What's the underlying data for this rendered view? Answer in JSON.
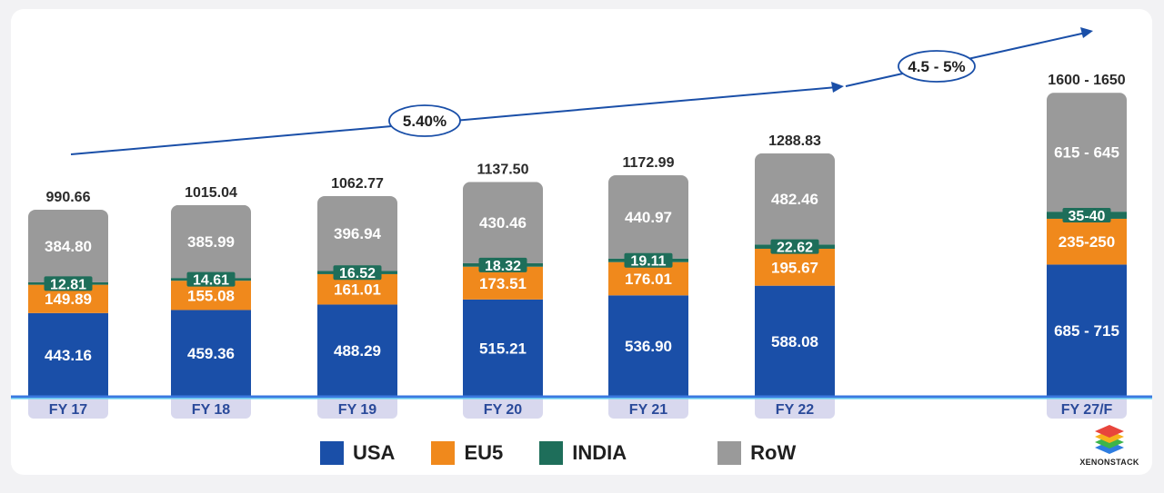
{
  "chart_data": {
    "type": "bar",
    "stacked": true,
    "categories": [
      "FY 17",
      "FY 18",
      "FY 19",
      "FY 20",
      "FY 21",
      "FY 22",
      "FY 27/F"
    ],
    "totals": [
      "990.66",
      "1015.04",
      "1062.77",
      "1137.50",
      "1172.99",
      "1288.83",
      "1600 - 1650"
    ],
    "series": [
      {
        "name": "USA",
        "color": "#1a4fa8",
        "values": [
          443.16,
          459.36,
          488.29,
          515.21,
          536.9,
          588.08,
          700
        ],
        "labels": [
          "443.16",
          "459.36",
          "488.29",
          "515.21",
          "536.90",
          "588.08",
          "685 - 715"
        ]
      },
      {
        "name": "EU5",
        "color": "#f0891c",
        "values": [
          149.89,
          155.08,
          161.01,
          173.51,
          176.01,
          195.67,
          242.5
        ],
        "labels": [
          "149.89",
          "155.08",
          "161.01",
          "173.51",
          "176.01",
          "195.67",
          "235-250"
        ]
      },
      {
        "name": "INDIA",
        "color": "#1e6e5a",
        "values": [
          12.81,
          14.61,
          16.52,
          18.32,
          19.11,
          22.62,
          37.5
        ],
        "labels": [
          "12.81",
          "14.61",
          "16.52",
          "18.32",
          "19.11",
          "22.62",
          "35-40"
        ]
      },
      {
        "name": "RoW",
        "color": "#9a9a9a",
        "values": [
          384.8,
          385.99,
          396.94,
          430.46,
          440.97,
          482.46,
          630
        ],
        "labels": [
          "384.80",
          "385.99",
          "396.94",
          "430.46",
          "440.97",
          "482.46",
          "615 - 645"
        ]
      }
    ],
    "annotations": [
      {
        "label": "5.40%",
        "type": "growth-arrow"
      },
      {
        "label": "4.5 - 5%",
        "type": "growth-arrow"
      }
    ],
    "legend_position": "bottom",
    "grid": false
  },
  "brand": "XENONSTACK"
}
